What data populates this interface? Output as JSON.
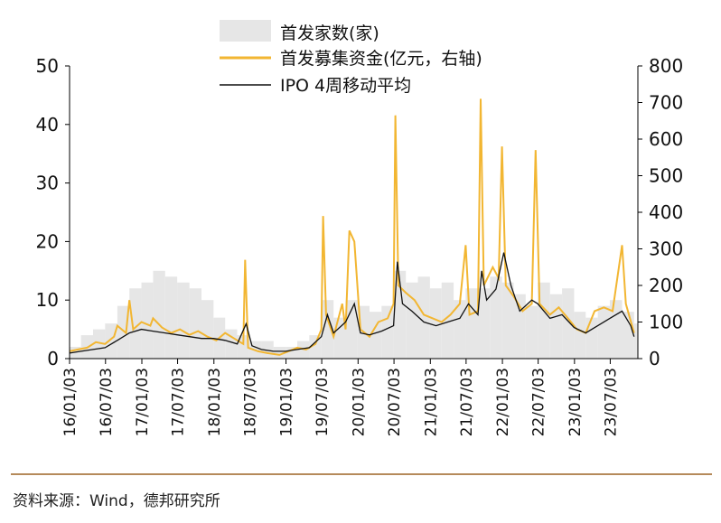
{
  "source_note": "资料来源：Wind，德邦研究所",
  "chart_data": {
    "type": "bar+line",
    "title": "",
    "xlabel": "",
    "ylabel": "",
    "ylim_left": [
      0,
      50
    ],
    "ylim_right": [
      0,
      800
    ],
    "yticks_left": [
      "0",
      "10",
      "20",
      "30",
      "40",
      "50"
    ],
    "yticks_right": [
      "0",
      "100",
      "200",
      "300",
      "400",
      "500",
      "600",
      "700",
      "800"
    ],
    "x_tick_labels": [
      "16/01/03",
      "16/07/03",
      "17/01/03",
      "17/07/03",
      "18/01/03",
      "18/07/03",
      "19/01/03",
      "19/07/03",
      "20/01/03",
      "20/07/03",
      "21/01/03",
      "21/07/03",
      "22/01/03",
      "22/07/03",
      "23/01/03",
      "23/07/03"
    ],
    "legend_position": "top",
    "colors": {
      "bars": "#e6e6e6",
      "funds_line": "#f2b632",
      "ma_line": "#111111"
    },
    "series": [
      {
        "name": "首发家数(家)",
        "kind": "bar",
        "axis": "left",
        "points": [
          [
            "2016-01-03",
            2
          ],
          [
            "2016-03-01",
            4
          ],
          [
            "2016-05-01",
            5
          ],
          [
            "2016-07-01",
            6
          ],
          [
            "2016-09-01",
            9
          ],
          [
            "2016-11-01",
            12
          ],
          [
            "2017-01-01",
            13
          ],
          [
            "2017-03-01",
            15
          ],
          [
            "2017-05-01",
            14
          ],
          [
            "2017-07-01",
            13
          ],
          [
            "2017-09-01",
            12
          ],
          [
            "2017-11-01",
            10
          ],
          [
            "2018-01-01",
            7
          ],
          [
            "2018-03-01",
            5
          ],
          [
            "2018-05-01",
            4
          ],
          [
            "2018-07-01",
            3
          ],
          [
            "2018-09-01",
            3
          ],
          [
            "2018-11-01",
            2
          ],
          [
            "2019-01-01",
            2
          ],
          [
            "2019-03-01",
            3
          ],
          [
            "2019-05-01",
            4
          ],
          [
            "2019-07-01",
            10
          ],
          [
            "2019-09-01",
            7
          ],
          [
            "2019-11-01",
            10
          ],
          [
            "2020-01-01",
            9
          ],
          [
            "2020-03-01",
            8
          ],
          [
            "2020-05-01",
            9
          ],
          [
            "2020-07-01",
            15
          ],
          [
            "2020-09-01",
            13
          ],
          [
            "2020-11-01",
            14
          ],
          [
            "2021-01-01",
            12
          ],
          [
            "2021-03-01",
            13
          ],
          [
            "2021-05-01",
            10
          ],
          [
            "2021-07-01",
            12
          ],
          [
            "2021-09-01",
            12
          ],
          [
            "2021-11-01",
            14
          ],
          [
            "2022-01-01",
            13
          ],
          [
            "2022-03-01",
            11
          ],
          [
            "2022-05-01",
            9
          ],
          [
            "2022-07-01",
            13
          ],
          [
            "2022-09-01",
            11
          ],
          [
            "2022-11-01",
            12
          ],
          [
            "2023-01-01",
            8
          ],
          [
            "2023-03-01",
            7
          ],
          [
            "2023-05-01",
            9
          ],
          [
            "2023-07-01",
            10
          ],
          [
            "2023-09-01",
            8
          ],
          [
            "2023-11-01",
            6
          ]
        ]
      },
      {
        "name": "首发募集资金(亿元，右轴)",
        "kind": "line",
        "axis": "right",
        "points": [
          [
            "2016-01-03",
            20
          ],
          [
            "2016-02-15",
            25
          ],
          [
            "2016-04-01",
            30
          ],
          [
            "2016-05-15",
            45
          ],
          [
            "2016-07-01",
            40
          ],
          [
            "2016-08-15",
            60
          ],
          [
            "2016-09-01",
            90
          ],
          [
            "2016-10-15",
            70
          ],
          [
            "2016-11-01",
            160
          ],
          [
            "2016-11-20",
            80
          ],
          [
            "2017-01-01",
            100
          ],
          [
            "2017-02-15",
            90
          ],
          [
            "2017-03-01",
            110
          ],
          [
            "2017-04-15",
            85
          ],
          [
            "2017-06-01",
            70
          ],
          [
            "2017-07-15",
            80
          ],
          [
            "2017-09-01",
            65
          ],
          [
            "2017-10-15",
            75
          ],
          [
            "2017-12-01",
            60
          ],
          [
            "2018-01-15",
            50
          ],
          [
            "2018-03-01",
            70
          ],
          [
            "2018-04-15",
            55
          ],
          [
            "2018-06-01",
            40
          ],
          [
            "2018-06-10",
            270
          ],
          [
            "2018-06-25",
            30
          ],
          [
            "2018-08-15",
            20
          ],
          [
            "2018-10-01",
            15
          ],
          [
            "2018-12-01",
            10
          ],
          [
            "2019-01-15",
            20
          ],
          [
            "2019-03-01",
            30
          ],
          [
            "2019-04-15",
            25
          ],
          [
            "2019-06-01",
            40
          ],
          [
            "2019-07-01",
            80
          ],
          [
            "2019-07-10",
            390
          ],
          [
            "2019-07-25",
            120
          ],
          [
            "2019-09-01",
            60
          ],
          [
            "2019-10-15",
            150
          ],
          [
            "2019-11-01",
            80
          ],
          [
            "2019-11-20",
            350
          ],
          [
            "2019-12-15",
            320
          ],
          [
            "2020-01-15",
            80
          ],
          [
            "2020-03-01",
            60
          ],
          [
            "2020-04-15",
            100
          ],
          [
            "2020-06-01",
            110
          ],
          [
            "2020-07-01",
            150
          ],
          [
            "2020-07-10",
            665
          ],
          [
            "2020-07-25",
            200
          ],
          [
            "2020-09-01",
            180
          ],
          [
            "2020-10-15",
            160
          ],
          [
            "2020-12-01",
            120
          ],
          [
            "2021-01-15",
            110
          ],
          [
            "2021-03-01",
            100
          ],
          [
            "2021-04-15",
            120
          ],
          [
            "2021-06-01",
            150
          ],
          [
            "2021-07-01",
            310
          ],
          [
            "2021-07-20",
            120
          ],
          [
            "2021-09-01",
            130
          ],
          [
            "2021-09-15",
            710
          ],
          [
            "2021-10-01",
            200
          ],
          [
            "2021-11-15",
            250
          ],
          [
            "2021-12-15",
            220
          ],
          [
            "2022-01-01",
            580
          ],
          [
            "2022-01-20",
            200
          ],
          [
            "2022-03-01",
            170
          ],
          [
            "2022-04-15",
            130
          ],
          [
            "2022-06-01",
            150
          ],
          [
            "2022-06-20",
            570
          ],
          [
            "2022-07-10",
            150
          ],
          [
            "2022-09-01",
            120
          ],
          [
            "2022-10-15",
            140
          ],
          [
            "2022-12-01",
            110
          ],
          [
            "2023-01-15",
            80
          ],
          [
            "2023-03-01",
            70
          ],
          [
            "2023-04-15",
            130
          ],
          [
            "2023-06-01",
            140
          ],
          [
            "2023-07-15",
            130
          ],
          [
            "2023-09-01",
            310
          ],
          [
            "2023-09-20",
            150
          ],
          [
            "2023-11-01",
            70
          ]
        ]
      },
      {
        "name": "IPO 4周移动平均",
        "kind": "line",
        "axis": "right",
        "points": [
          [
            "2016-01-03",
            15
          ],
          [
            "2016-03-01",
            20
          ],
          [
            "2016-05-01",
            25
          ],
          [
            "2016-07-01",
            30
          ],
          [
            "2016-09-01",
            50
          ],
          [
            "2016-11-01",
            70
          ],
          [
            "2017-01-01",
            80
          ],
          [
            "2017-03-01",
            75
          ],
          [
            "2017-05-01",
            70
          ],
          [
            "2017-07-01",
            65
          ],
          [
            "2017-09-01",
            60
          ],
          [
            "2017-11-01",
            55
          ],
          [
            "2018-01-01",
            55
          ],
          [
            "2018-03-01",
            50
          ],
          [
            "2018-05-01",
            40
          ],
          [
            "2018-06-15",
            95
          ],
          [
            "2018-07-15",
            35
          ],
          [
            "2018-09-01",
            25
          ],
          [
            "2018-11-01",
            20
          ],
          [
            "2019-01-01",
            20
          ],
          [
            "2019-03-01",
            25
          ],
          [
            "2019-05-01",
            30
          ],
          [
            "2019-07-01",
            60
          ],
          [
            "2019-08-01",
            120
          ],
          [
            "2019-09-01",
            70
          ],
          [
            "2019-11-01",
            100
          ],
          [
            "2019-12-15",
            150
          ],
          [
            "2020-01-15",
            70
          ],
          [
            "2020-03-01",
            65
          ],
          [
            "2020-05-01",
            75
          ],
          [
            "2020-07-01",
            90
          ],
          [
            "2020-07-20",
            265
          ],
          [
            "2020-08-15",
            150
          ],
          [
            "2020-10-01",
            130
          ],
          [
            "2020-12-01",
            100
          ],
          [
            "2021-02-01",
            90
          ],
          [
            "2021-04-01",
            100
          ],
          [
            "2021-06-01",
            110
          ],
          [
            "2021-07-15",
            150
          ],
          [
            "2021-09-01",
            120
          ],
          [
            "2021-09-20",
            240
          ],
          [
            "2021-10-15",
            160
          ],
          [
            "2021-12-01",
            190
          ],
          [
            "2022-01-10",
            290
          ],
          [
            "2022-02-15",
            200
          ],
          [
            "2022-04-01",
            130
          ],
          [
            "2022-06-01",
            160
          ],
          [
            "2022-07-01",
            150
          ],
          [
            "2022-09-01",
            110
          ],
          [
            "2022-11-01",
            120
          ],
          [
            "2023-01-01",
            85
          ],
          [
            "2023-03-01",
            70
          ],
          [
            "2023-05-01",
            90
          ],
          [
            "2023-07-01",
            110
          ],
          [
            "2023-09-01",
            130
          ],
          [
            "2023-10-15",
            90
          ],
          [
            "2023-11-01",
            60
          ]
        ]
      }
    ]
  }
}
